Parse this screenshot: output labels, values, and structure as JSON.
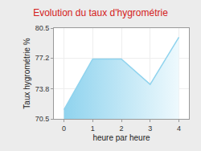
{
  "chart_data": {
    "type": "area",
    "title": "Evolution du taux d'hygrométrie",
    "x_label": "heure par heure",
    "y_label": "Taux hygrométrie %",
    "x": [
      0,
      1,
      2,
      3,
      4
    ],
    "values": [
      71.5,
      77.1,
      77.1,
      74.3,
      79.5
    ],
    "color": "#8fd3ee",
    "xlim": [
      -0.35,
      4.35
    ],
    "xticks": [
      0,
      1,
      2,
      3,
      4
    ],
    "ylim": [
      70.5,
      80.5
    ],
    "yticks": [
      70.5,
      73.8,
      77.2,
      80.5
    ],
    "grid": true
  }
}
